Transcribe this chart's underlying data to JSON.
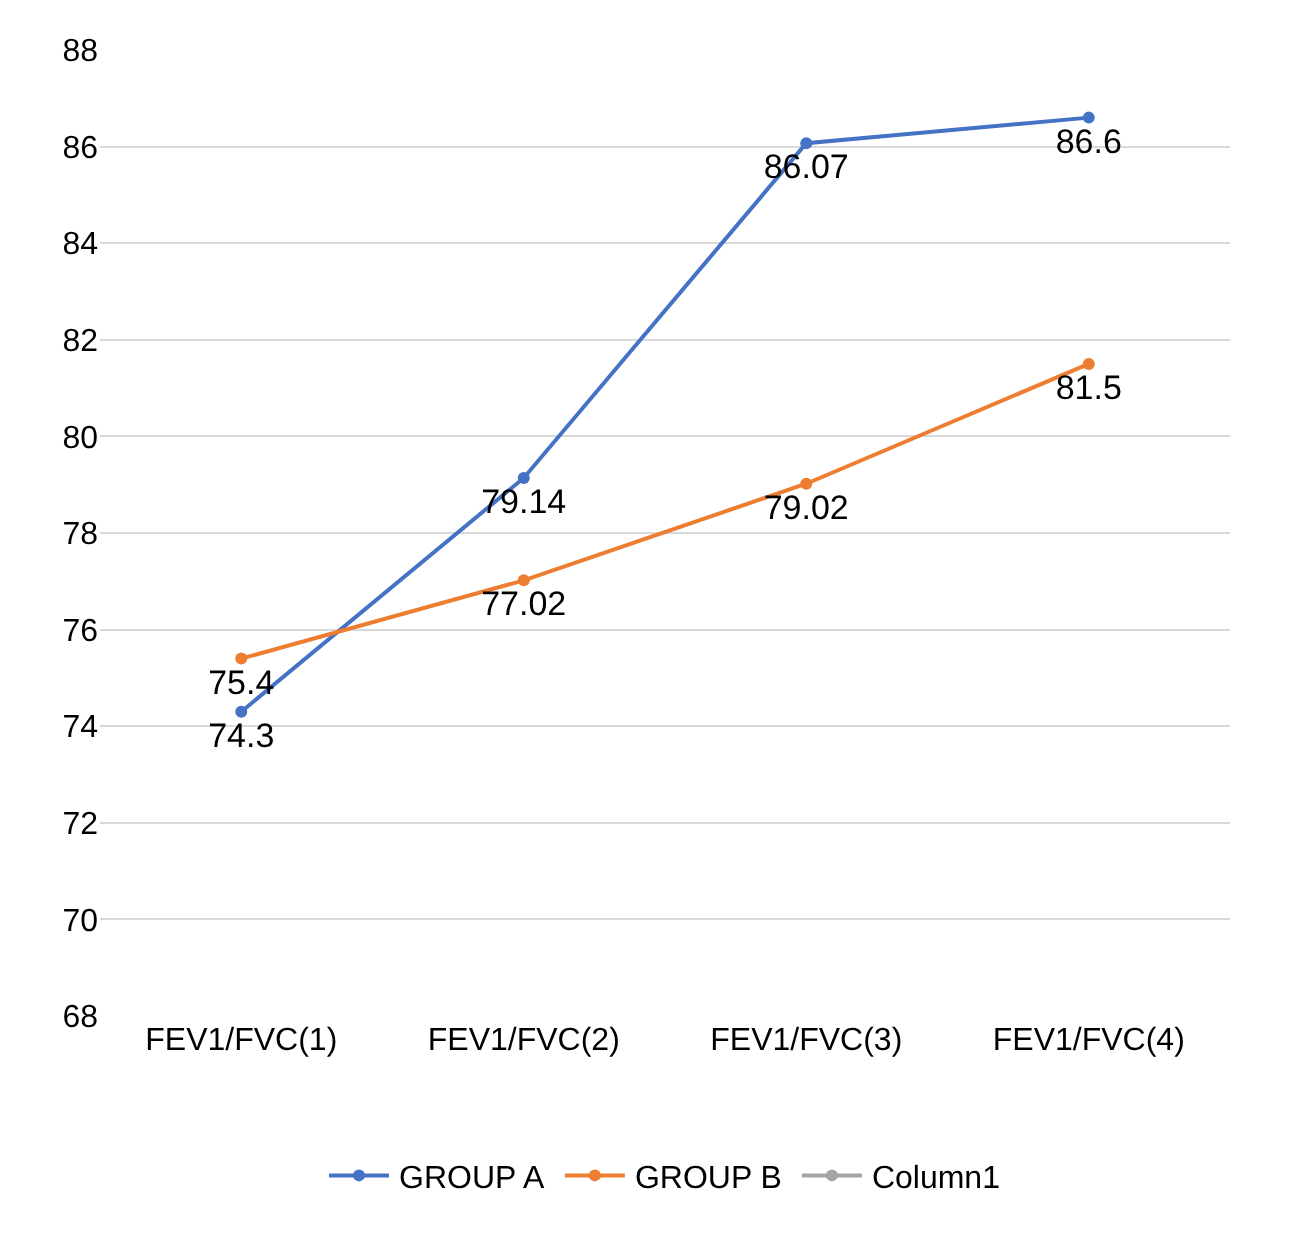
{
  "chart_data": {
    "type": "line",
    "categories": [
      "FEV1/FVC(1)",
      "FEV1/FVC(2)",
      "FEV1/FVC(3)",
      "FEV1/FVC(4)"
    ],
    "series": [
      {
        "name": "GROUP A",
        "color": "#4472c4",
        "values": [
          74.3,
          79.14,
          86.07,
          86.6
        ]
      },
      {
        "name": "GROUP B",
        "color": "#ed7d31",
        "values": [
          75.4,
          77.02,
          79.02,
          81.5
        ]
      },
      {
        "name": "Column1",
        "color": "#a5a5a5",
        "values": [
          null,
          null,
          null,
          null
        ]
      }
    ],
    "ylim": [
      68,
      88
    ],
    "yticks": [
      68,
      70,
      72,
      74,
      76,
      78,
      80,
      82,
      84,
      86,
      88
    ],
    "grid": "y",
    "legend": "bottom",
    "marker": "circle",
    "line_style": "solid",
    "data_labels": true
  }
}
